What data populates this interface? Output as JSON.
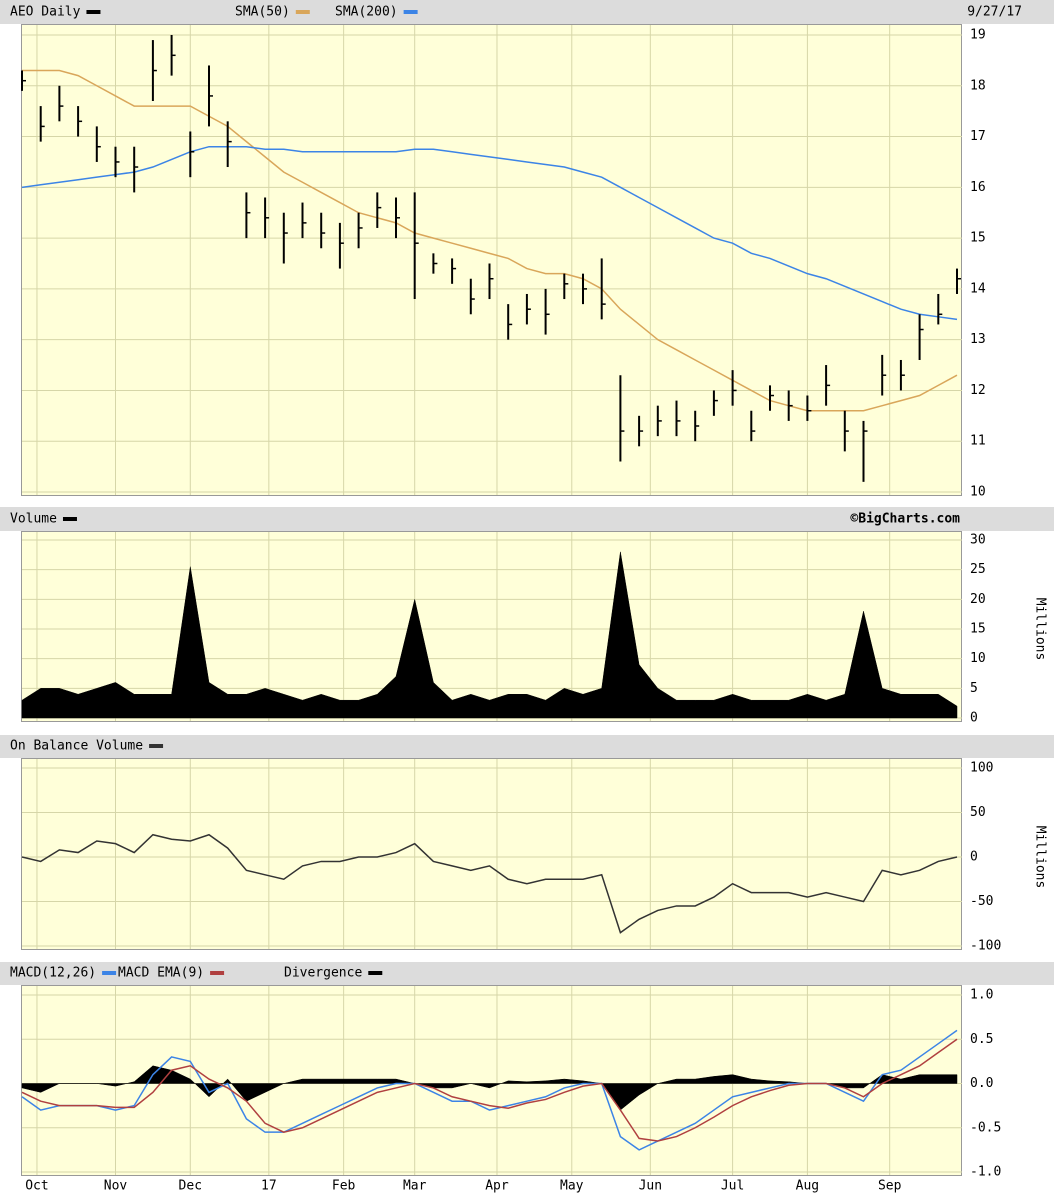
{
  "chart_data": [
    {
      "type": "ohlc",
      "title": "AEO Daily",
      "date": "9/27/17",
      "color": "#000000",
      "x": [
        0,
        5,
        10,
        15,
        20,
        25,
        30,
        35,
        40,
        45,
        50,
        55,
        60,
        65,
        70,
        75,
        80,
        85,
        90,
        95,
        100,
        105,
        110,
        115,
        120,
        125,
        130,
        135,
        140,
        145,
        150,
        155,
        160,
        165,
        170,
        175,
        180,
        185,
        190,
        195,
        200,
        205,
        210,
        215,
        220,
        225,
        230,
        235,
        240,
        245,
        250
      ],
      "high": [
        18.3,
        17.6,
        18.0,
        17.6,
        17.2,
        16.8,
        16.8,
        18.9,
        19.0,
        17.1,
        18.4,
        17.3,
        15.9,
        15.8,
        15.5,
        15.7,
        15.5,
        15.3,
        15.5,
        15.9,
        15.8,
        15.9,
        14.7,
        14.6,
        14.2,
        14.5,
        13.7,
        13.9,
        14.0,
        14.3,
        14.3,
        14.6,
        12.3,
        11.5,
        11.7,
        11.8,
        11.6,
        12.0,
        12.4,
        11.6,
        12.1,
        12.0,
        11.9,
        12.5,
        11.6,
        11.4,
        12.7,
        12.6,
        13.5,
        13.9,
        14.4
      ],
      "low": [
        17.9,
        16.9,
        17.3,
        17.0,
        16.5,
        16.2,
        15.9,
        17.7,
        18.2,
        16.2,
        17.2,
        16.4,
        15.0,
        15.0,
        14.5,
        15.0,
        14.8,
        14.4,
        14.8,
        15.2,
        15.0,
        13.8,
        14.3,
        14.1,
        13.5,
        13.8,
        13.0,
        13.3,
        13.1,
        13.8,
        13.7,
        13.4,
        10.6,
        10.9,
        11.1,
        11.1,
        11.0,
        11.5,
        11.7,
        11.0,
        11.6,
        11.4,
        11.4,
        11.7,
        10.8,
        10.2,
        11.9,
        12.0,
        12.6,
        13.3,
        13.9
      ],
      "close": [
        18.1,
        17.2,
        17.6,
        17.3,
        16.8,
        16.5,
        16.4,
        18.3,
        18.6,
        16.7,
        17.8,
        16.9,
        15.5,
        15.4,
        15.1,
        15.3,
        15.1,
        14.9,
        15.2,
        15.6,
        15.4,
        14.9,
        14.5,
        14.4,
        13.8,
        14.2,
        13.3,
        13.6,
        13.5,
        14.1,
        14.0,
        13.7,
        11.2,
        11.2,
        11.4,
        11.4,
        11.3,
        11.8,
        12.0,
        11.2,
        11.9,
        11.7,
        11.6,
        12.1,
        11.2,
        11.2,
        12.3,
        12.3,
        13.2,
        13.5,
        14.2
      ],
      "series": [
        {
          "name": "SMA(50)",
          "color": "#d9a65a",
          "values": [
            18.3,
            18.3,
            18.3,
            18.2,
            18.0,
            17.8,
            17.6,
            17.6,
            17.6,
            17.6,
            17.4,
            17.2,
            16.9,
            16.6,
            16.3,
            16.1,
            15.9,
            15.7,
            15.5,
            15.4,
            15.3,
            15.1,
            15.0,
            14.9,
            14.8,
            14.7,
            14.6,
            14.4,
            14.3,
            14.3,
            14.2,
            14.0,
            13.6,
            13.3,
            13.0,
            12.8,
            12.6,
            12.4,
            12.2,
            12.0,
            11.8,
            11.7,
            11.6,
            11.6,
            11.6,
            11.6,
            11.7,
            11.8,
            11.9,
            12.1,
            12.3
          ]
        },
        {
          "name": "SMA(200)",
          "color": "#3c84e6",
          "values": [
            16.0,
            16.05,
            16.1,
            16.15,
            16.2,
            16.25,
            16.3,
            16.4,
            16.55,
            16.7,
            16.8,
            16.8,
            16.8,
            16.75,
            16.75,
            16.7,
            16.7,
            16.7,
            16.7,
            16.7,
            16.7,
            16.75,
            16.75,
            16.7,
            16.65,
            16.6,
            16.55,
            16.5,
            16.45,
            16.4,
            16.3,
            16.2,
            16.0,
            15.8,
            15.6,
            15.4,
            15.2,
            15.0,
            14.9,
            14.7,
            14.6,
            14.45,
            14.3,
            14.2,
            14.05,
            13.9,
            13.75,
            13.6,
            13.5,
            13.45,
            13.4
          ]
        }
      ],
      "xlim": [
        0,
        250
      ],
      "ylim": [
        10,
        19
      ],
      "yticks": [
        10,
        11,
        12,
        13,
        14,
        15,
        16,
        17,
        18,
        19
      ],
      "grid": true
    },
    {
      "type": "area",
      "title": "Volume",
      "credit": "©BigCharts.com",
      "ylabel": "Millions",
      "color": "#000000",
      "x": [
        0,
        5,
        10,
        15,
        20,
        25,
        30,
        35,
        40,
        45,
        50,
        55,
        60,
        65,
        70,
        75,
        80,
        85,
        90,
        95,
        100,
        105,
        110,
        115,
        120,
        125,
        130,
        135,
        140,
        145,
        150,
        155,
        160,
        165,
        170,
        175,
        180,
        185,
        190,
        195,
        200,
        205,
        210,
        215,
        220,
        225,
        230,
        235,
        240,
        245,
        250
      ],
      "values": [
        3,
        5,
        5,
        4,
        5,
        6,
        4,
        4,
        4,
        25.5,
        6,
        4,
        4,
        5,
        4,
        3,
        4,
        3,
        3,
        4,
        7,
        20,
        6,
        3,
        4,
        3,
        4,
        4,
        3,
        5,
        4,
        5,
        28,
        9,
        5,
        3,
        3,
        3,
        4,
        3,
        3,
        3,
        4,
        3,
        4,
        18,
        5,
        4,
        4,
        4,
        2
      ],
      "xlim": [
        0,
        250
      ],
      "ylim": [
        0,
        30
      ],
      "yticks": [
        0,
        5,
        10,
        15,
        20,
        25,
        30
      ],
      "grid": true
    },
    {
      "type": "line",
      "title": "On Balance Volume",
      "ylabel": "Millions",
      "color": "#333333",
      "x": [
        0,
        5,
        10,
        15,
        20,
        25,
        30,
        35,
        40,
        45,
        50,
        55,
        60,
        65,
        70,
        75,
        80,
        85,
        90,
        95,
        100,
        105,
        110,
        115,
        120,
        125,
        130,
        135,
        140,
        145,
        150,
        155,
        160,
        165,
        170,
        175,
        180,
        185,
        190,
        195,
        200,
        205,
        210,
        215,
        220,
        225,
        230,
        235,
        240,
        245,
        250
      ],
      "values": [
        0,
        -5,
        8,
        5,
        18,
        15,
        5,
        25,
        20,
        18,
        25,
        10,
        -15,
        -20,
        -25,
        -10,
        -5,
        -5,
        0,
        0,
        5,
        15,
        -5,
        -10,
        -15,
        -10,
        -25,
        -30,
        -25,
        -25,
        -25,
        -20,
        -85,
        -70,
        -60,
        -55,
        -55,
        -45,
        -30,
        -40,
        -40,
        -40,
        -45,
        -40,
        -45,
        -50,
        -15,
        -20,
        -15,
        -5,
        0
      ],
      "xlim": [
        0,
        250
      ],
      "ylim": [
        -100,
        100
      ],
      "yticks": [
        -100,
        -50,
        0,
        50,
        100
      ],
      "grid": true
    },
    {
      "type": "macd",
      "x": [
        0,
        5,
        10,
        15,
        20,
        25,
        30,
        35,
        40,
        45,
        50,
        55,
        60,
        65,
        70,
        75,
        80,
        85,
        90,
        95,
        100,
        105,
        110,
        115,
        120,
        125,
        130,
        135,
        140,
        145,
        150,
        155,
        160,
        165,
        170,
        175,
        180,
        185,
        190,
        195,
        200,
        205,
        210,
        215,
        220,
        225,
        230,
        235,
        240,
        245,
        250
      ],
      "series": [
        {
          "name": "MACD(12,26)",
          "color": "#3c84e6",
          "values": [
            -0.15,
            -0.3,
            -0.25,
            -0.25,
            -0.25,
            -0.3,
            -0.25,
            0.1,
            0.3,
            0.25,
            -0.1,
            0,
            -0.4,
            -0.55,
            -0.55,
            -0.45,
            -0.35,
            -0.25,
            -0.15,
            -0.05,
            0,
            0,
            -0.1,
            -0.2,
            -0.2,
            -0.3,
            -0.25,
            -0.2,
            -0.15,
            -0.05,
            0,
            0,
            -0.6,
            -0.75,
            -0.65,
            -0.55,
            -0.45,
            -0.3,
            -0.15,
            -0.1,
            -0.05,
            0,
            0,
            0,
            -0.1,
            -0.2,
            0.1,
            0.15,
            0.3,
            0.45,
            0.6
          ]
        },
        {
          "name": "MACD EMA(9)",
          "color": "#b04040",
          "values": [
            -0.1,
            -0.2,
            -0.25,
            -0.25,
            -0.25,
            -0.27,
            -0.27,
            -0.1,
            0.15,
            0.2,
            0.05,
            -0.05,
            -0.2,
            -0.45,
            -0.55,
            -0.5,
            -0.4,
            -0.3,
            -0.2,
            -0.1,
            -0.05,
            0,
            -0.05,
            -0.15,
            -0.2,
            -0.25,
            -0.28,
            -0.22,
            -0.18,
            -0.1,
            -0.03,
            0,
            -0.3,
            -0.62,
            -0.65,
            -0.6,
            -0.5,
            -0.38,
            -0.25,
            -0.15,
            -0.08,
            -0.02,
            0,
            0,
            -0.05,
            -0.15,
            0,
            0.1,
            0.2,
            0.35,
            0.5
          ]
        },
        {
          "name": "Divergence",
          "color": "#000000",
          "values": [
            -0.05,
            -0.1,
            0,
            0,
            0,
            -0.03,
            0.02,
            0.2,
            0.15,
            0.05,
            -0.15,
            0.05,
            -0.2,
            -0.1,
            0,
            0.05,
            0.05,
            0.05,
            0.05,
            0.05,
            0.05,
            0,
            -0.05,
            -0.05,
            0,
            -0.05,
            0.03,
            0.02,
            0.03,
            0.05,
            0.03,
            0,
            -0.3,
            -0.13,
            0,
            0.05,
            0.05,
            0.08,
            0.1,
            0.05,
            0.03,
            0.02,
            0,
            0,
            -0.05,
            -0.05,
            0.1,
            0.05,
            0.1,
            0.1,
            0.1
          ]
        }
      ],
      "xlim": [
        0,
        250
      ],
      "ylim": [
        -1,
        1
      ],
      "yticks": [
        {
          "value": -1,
          "label": "-1.0"
        },
        -0.5,
        {
          "value": 0,
          "label": "0.0"
        },
        0.5,
        {
          "value": 1,
          "label": "1.0"
        }
      ],
      "xticks": [
        {
          "value": 4,
          "label": "Oct"
        },
        {
          "value": 25,
          "label": "Nov"
        },
        {
          "value": 45,
          "label": "Dec"
        },
        {
          "value": 66,
          "label": "17"
        },
        {
          "value": 86,
          "label": "Feb"
        },
        {
          "value": 105,
          "label": "Mar"
        },
        {
          "value": 127,
          "label": "Apr"
        },
        {
          "value": 147,
          "label": "May"
        },
        {
          "value": 168,
          "label": "Jun"
        },
        {
          "value": 190,
          "label": "Jul"
        },
        {
          "value": 210,
          "label": "Aug"
        },
        {
          "value": 232,
          "label": "Sep"
        }
      ],
      "grid": true
    }
  ]
}
